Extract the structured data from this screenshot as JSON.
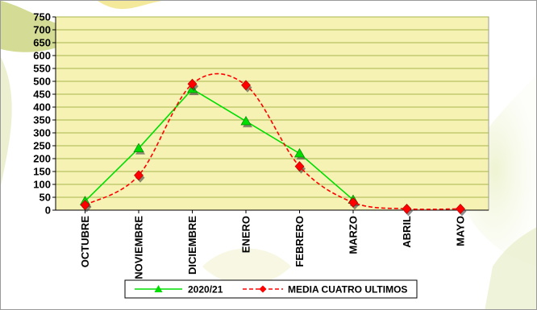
{
  "chart_data": {
    "type": "line",
    "categories": [
      "OCTUBRE",
      "NOVIEMBRE",
      "DICIEMBRE",
      "ENERO",
      "FEBRERO",
      "MARZO",
      "ABRIL",
      "MAYO"
    ],
    "series": [
      {
        "name": "2020/21",
        "values": [
          35,
          240,
          470,
          345,
          220,
          40,
          null,
          null
        ],
        "color": "#00dd00",
        "marker": "triangle",
        "line": "solid",
        "smooth": false
      },
      {
        "name": "MEDIA CUATRO ULTIMOS",
        "values": [
          20,
          135,
          490,
          485,
          170,
          30,
          5,
          5
        ],
        "color": "#ff0000",
        "marker": "diamond",
        "line": "dashed",
        "smooth": true
      }
    ],
    "title": "",
    "xlabel": "",
    "ylabel": "",
    "ylim": [
      0,
      750
    ],
    "yticks": [
      0,
      50,
      100,
      150,
      200,
      250,
      300,
      350,
      400,
      450,
      500,
      550,
      600,
      650,
      700,
      750
    ],
    "grid": "horizontal",
    "legend": "bottom",
    "colors": {
      "plot_background": "#f6f2b4",
      "gridline": "#a7b64a",
      "border": "#9a9a9a"
    }
  }
}
